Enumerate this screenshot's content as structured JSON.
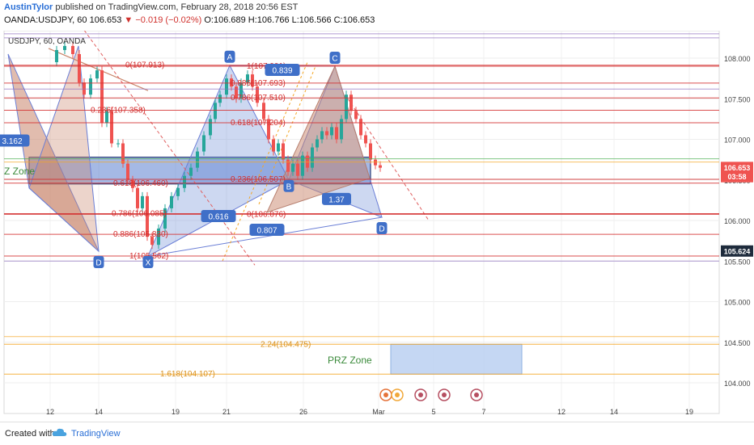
{
  "header": {
    "author": "AustinTylor",
    "published": "published on TradingView.com, February 28, 2018 20:56 EST",
    "symbol": "OANDA:USDJPY, 60",
    "last": "106.653",
    "change": "−0.019 (−0.02%)",
    "ohlc": "O:106.689 H:106.766 L:106.566 C:106.653"
  },
  "chart_title": "USDJPY, 60, OANDA",
  "footer": {
    "created": "Created with",
    "brand": "TradingView"
  },
  "colors": {
    "up": "#26a69a",
    "down": "#ef5350",
    "pattern_blue": "#6f8fd6",
    "pattern_brown": "#c9856b",
    "fib_red": "#d32f2f",
    "orange": "#f5a623",
    "zone_blue": "#b7cdf0",
    "label_blue": "#3f6fc8"
  },
  "chart_data": {
    "type": "line",
    "y_axis": {
      "ticks": [
        "108.000",
        "107.500",
        "107.000",
        "106.500",
        "106.000",
        "105.500",
        "105.000",
        "104.500",
        "104.000"
      ],
      "range": [
        103.79,
        108.35
      ]
    },
    "x_axis": {
      "ticks": [
        "12",
        "14",
        "19",
        "21",
        "26",
        "Mar",
        "5",
        "7",
        "12",
        "14",
        "19"
      ]
    },
    "price_badges": [
      {
        "label": "106.653",
        "price": 106.653,
        "color": "#ef5350"
      },
      {
        "label": "03:58",
        "price": 106.54,
        "color": "#ef5350"
      },
      {
        "label": "105.624",
        "price": 105.624,
        "color": "#1e2b3c"
      }
    ],
    "pattern_points": [
      {
        "label": "A",
        "price": 107.913
      },
      {
        "label": "B",
        "price": 106.5
      },
      {
        "label": "C",
        "price": 107.9
      },
      {
        "label": "D",
        "price": 106.04
      },
      {
        "label": "X",
        "price": 105.562
      },
      {
        "label": "D",
        "price": 105.562
      }
    ],
    "ratios": [
      "0.839",
      "0.616",
      "0.807",
      "1.37",
      "3.162"
    ],
    "fib_levels": [
      {
        "label": "0(107.913)",
        "price": 107.913
      },
      {
        "label": "1(107.901)",
        "price": 107.901
      },
      {
        "label": "0.886(107.693)",
        "price": 107.693
      },
      {
        "label": "0.786(107.510)",
        "price": 107.51
      },
      {
        "label": "0.236(107.358)",
        "price": 107.358
      },
      {
        "label": "0.618(107.204)",
        "price": 107.204
      },
      {
        "label": "0.618(106.460)",
        "price": 106.46
      },
      {
        "label": "0.236(106.507)",
        "price": 106.507
      },
      {
        "label": "0.786(106.085)",
        "price": 106.085
      },
      {
        "label": "0(106.076)",
        "price": 106.076
      },
      {
        "label": "0.886(105.830)",
        "price": 105.83
      },
      {
        "label": "1(105.562)",
        "price": 105.562
      },
      {
        "label": "2.24(104.475)",
        "price": 104.475
      },
      {
        "label": "1.618(104.107)",
        "price": 104.107
      }
    ],
    "zones": [
      {
        "label": "PRZ Zone"
      },
      {
        "label": "Z Zone"
      }
    ]
  }
}
